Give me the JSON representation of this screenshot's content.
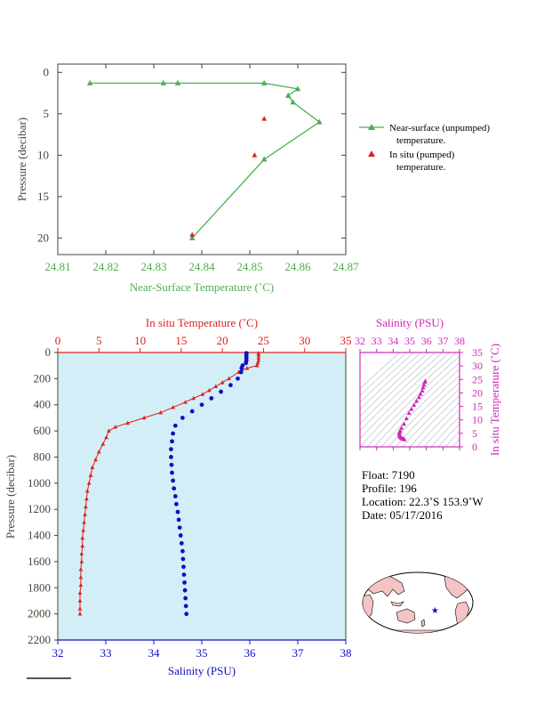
{
  "chart_data": [
    {
      "type": "line",
      "xlabel": "Near-Surface Temperature (˚C)",
      "ylabel": "Pressure (decibar)",
      "xlim": [
        24.81,
        24.87
      ],
      "ylim": [
        22,
        -1
      ],
      "xticks": [
        "24.81",
        "24.82",
        "24.83",
        "24.84",
        "24.85",
        "24.86",
        "24.87"
      ],
      "yticks": [
        "0",
        "5",
        "10",
        "15",
        "20"
      ],
      "series": [
        {
          "name": "Near-surface (unpumped)",
          "name_line2": "temperature.",
          "color": "#4caf50",
          "marker": "triangle",
          "points": [
            [
              24.8167,
              1.3
            ],
            [
              24.832,
              1.3
            ],
            [
              24.835,
              1.3
            ],
            [
              24.853,
              1.3
            ],
            [
              24.86,
              2.0
            ],
            [
              24.858,
              2.8
            ],
            [
              24.859,
              3.6
            ],
            [
              24.8645,
              6.0
            ],
            [
              24.853,
              10.5
            ],
            [
              24.838,
              20.0
            ]
          ]
        },
        {
          "name": "In situ (pumped)",
          "name_line2": "temperature.",
          "color": "#e02020",
          "marker": "triangle",
          "points": [
            [
              24.853,
              5.6
            ],
            [
              24.851,
              10.0
            ],
            [
              24.838,
              19.6
            ]
          ]
        }
      ]
    },
    {
      "type": "line",
      "xlabel_top": "In situ Temperature (˚C)",
      "xlabel_bottom": "Salinity (PSU)",
      "ylabel": "Pressure (decibar)",
      "temp_lim": [
        0,
        35
      ],
      "sal_lim": [
        32,
        38
      ],
      "ylim": [
        2200,
        0
      ],
      "temp_ticks": [
        "0",
        "5",
        "10",
        "15",
        "20",
        "25",
        "30",
        "35"
      ],
      "sal_ticks": [
        "32",
        "33",
        "34",
        "35",
        "36",
        "37",
        "38"
      ],
      "p_ticks": [
        "0",
        "200",
        "400",
        "600",
        "800",
        "1000",
        "1200",
        "1400",
        "1600",
        "1800",
        "2000",
        "2200"
      ],
      "temperature_profile": [
        [
          24.4,
          5
        ],
        [
          24.4,
          20
        ],
        [
          24.4,
          40
        ],
        [
          24.4,
          60
        ],
        [
          24.3,
          80
        ],
        [
          24.2,
          100
        ],
        [
          23.0,
          120
        ],
        [
          22.0,
          150
        ],
        [
          20.8,
          200
        ],
        [
          20.0,
          230
        ],
        [
          19.2,
          260
        ],
        [
          18.4,
          290
        ],
        [
          17.6,
          320
        ],
        [
          16.5,
          350
        ],
        [
          15.5,
          380
        ],
        [
          14.0,
          420
        ],
        [
          12.5,
          460
        ],
        [
          10.5,
          500
        ],
        [
          8.5,
          540
        ],
        [
          7.0,
          570
        ],
        [
          6.2,
          600
        ],
        [
          5.9,
          650
        ],
        [
          5.5,
          700
        ],
        [
          5.0,
          760
        ],
        [
          4.6,
          820
        ],
        [
          4.2,
          880
        ],
        [
          4.0,
          940
        ],
        [
          3.8,
          1000
        ],
        [
          3.6,
          1060
        ],
        [
          3.5,
          1120
        ],
        [
          3.4,
          1180
        ],
        [
          3.3,
          1240
        ],
        [
          3.2,
          1300
        ],
        [
          3.1,
          1360
        ],
        [
          3.0,
          1420
        ],
        [
          3.0,
          1480
        ],
        [
          2.9,
          1540
        ],
        [
          2.9,
          1600
        ],
        [
          2.8,
          1660
        ],
        [
          2.8,
          1720
        ],
        [
          2.8,
          1780
        ],
        [
          2.7,
          1840
        ],
        [
          2.7,
          1900
        ],
        [
          2.7,
          1960
        ],
        [
          2.7,
          2000
        ]
      ],
      "salinity_profile": [
        [
          35.93,
          5
        ],
        [
          35.93,
          20
        ],
        [
          35.93,
          40
        ],
        [
          35.93,
          60
        ],
        [
          35.92,
          80
        ],
        [
          35.85,
          100
        ],
        [
          35.83,
          120
        ],
        [
          35.82,
          150
        ],
        [
          35.75,
          200
        ],
        [
          35.6,
          250
        ],
        [
          35.4,
          300
        ],
        [
          35.2,
          350
        ],
        [
          35.0,
          400
        ],
        [
          34.8,
          450
        ],
        [
          34.6,
          500
        ],
        [
          34.45,
          560
        ],
        [
          34.4,
          620
        ],
        [
          34.38,
          680
        ],
        [
          34.36,
          740
        ],
        [
          34.36,
          800
        ],
        [
          34.37,
          860
        ],
        [
          34.38,
          920
        ],
        [
          34.4,
          980
        ],
        [
          34.42,
          1040
        ],
        [
          34.45,
          1100
        ],
        [
          34.47,
          1160
        ],
        [
          34.5,
          1220
        ],
        [
          34.52,
          1280
        ],
        [
          34.54,
          1340
        ],
        [
          34.56,
          1400
        ],
        [
          34.58,
          1460
        ],
        [
          34.6,
          1520
        ],
        [
          34.61,
          1580
        ],
        [
          34.62,
          1640
        ],
        [
          34.63,
          1700
        ],
        [
          34.64,
          1760
        ],
        [
          34.65,
          1820
        ],
        [
          34.66,
          1880
        ],
        [
          34.67,
          1940
        ],
        [
          34.68,
          2000
        ]
      ]
    },
    {
      "type": "scatter",
      "xlabel": "Salinity (PSU)",
      "ylabel": "In situ Temperature (˚C)",
      "xlim": [
        32,
        38
      ],
      "ylim": [
        0,
        35
      ],
      "xticks": [
        "32",
        "33",
        "34",
        "35",
        "36",
        "37",
        "38"
      ],
      "yticks": [
        "0",
        "5",
        "10",
        "15",
        "20",
        "25",
        "30",
        "35"
      ],
      "points": [
        [
          35.93,
          24.4
        ],
        [
          35.9,
          24.0
        ],
        [
          35.85,
          23.0
        ],
        [
          35.8,
          22.0
        ],
        [
          35.75,
          20.8
        ],
        [
          35.65,
          19.6
        ],
        [
          35.55,
          18.4
        ],
        [
          35.4,
          17.0
        ],
        [
          35.25,
          15.5
        ],
        [
          35.1,
          14.0
        ],
        [
          34.95,
          12.5
        ],
        [
          34.8,
          10.5
        ],
        [
          34.65,
          8.5
        ],
        [
          34.5,
          7.0
        ],
        [
          34.42,
          6.0
        ],
        [
          34.38,
          5.5
        ],
        [
          34.37,
          5.0
        ],
        [
          34.38,
          4.5
        ],
        [
          34.4,
          4.0
        ],
        [
          34.43,
          3.6
        ],
        [
          34.47,
          3.4
        ],
        [
          34.52,
          3.2
        ],
        [
          34.57,
          3.0
        ],
        [
          34.62,
          2.9
        ],
        [
          34.68,
          2.7
        ]
      ]
    }
  ],
  "info": {
    "float": "Float:  7190",
    "profile": "Profile:  196",
    "location": "Location:  22.3˚S  153.9˚W",
    "date": "Date:  05/17/2016"
  },
  "colors": {
    "green": "#4caf50",
    "red": "#e02020",
    "blue": "#1010c0",
    "magenta": "#d028b8",
    "panel_bg": "#d4eef7",
    "axis_dark": "#3a4a36"
  },
  "map": {
    "float_lon": -153.9,
    "float_lat": -22.3
  }
}
